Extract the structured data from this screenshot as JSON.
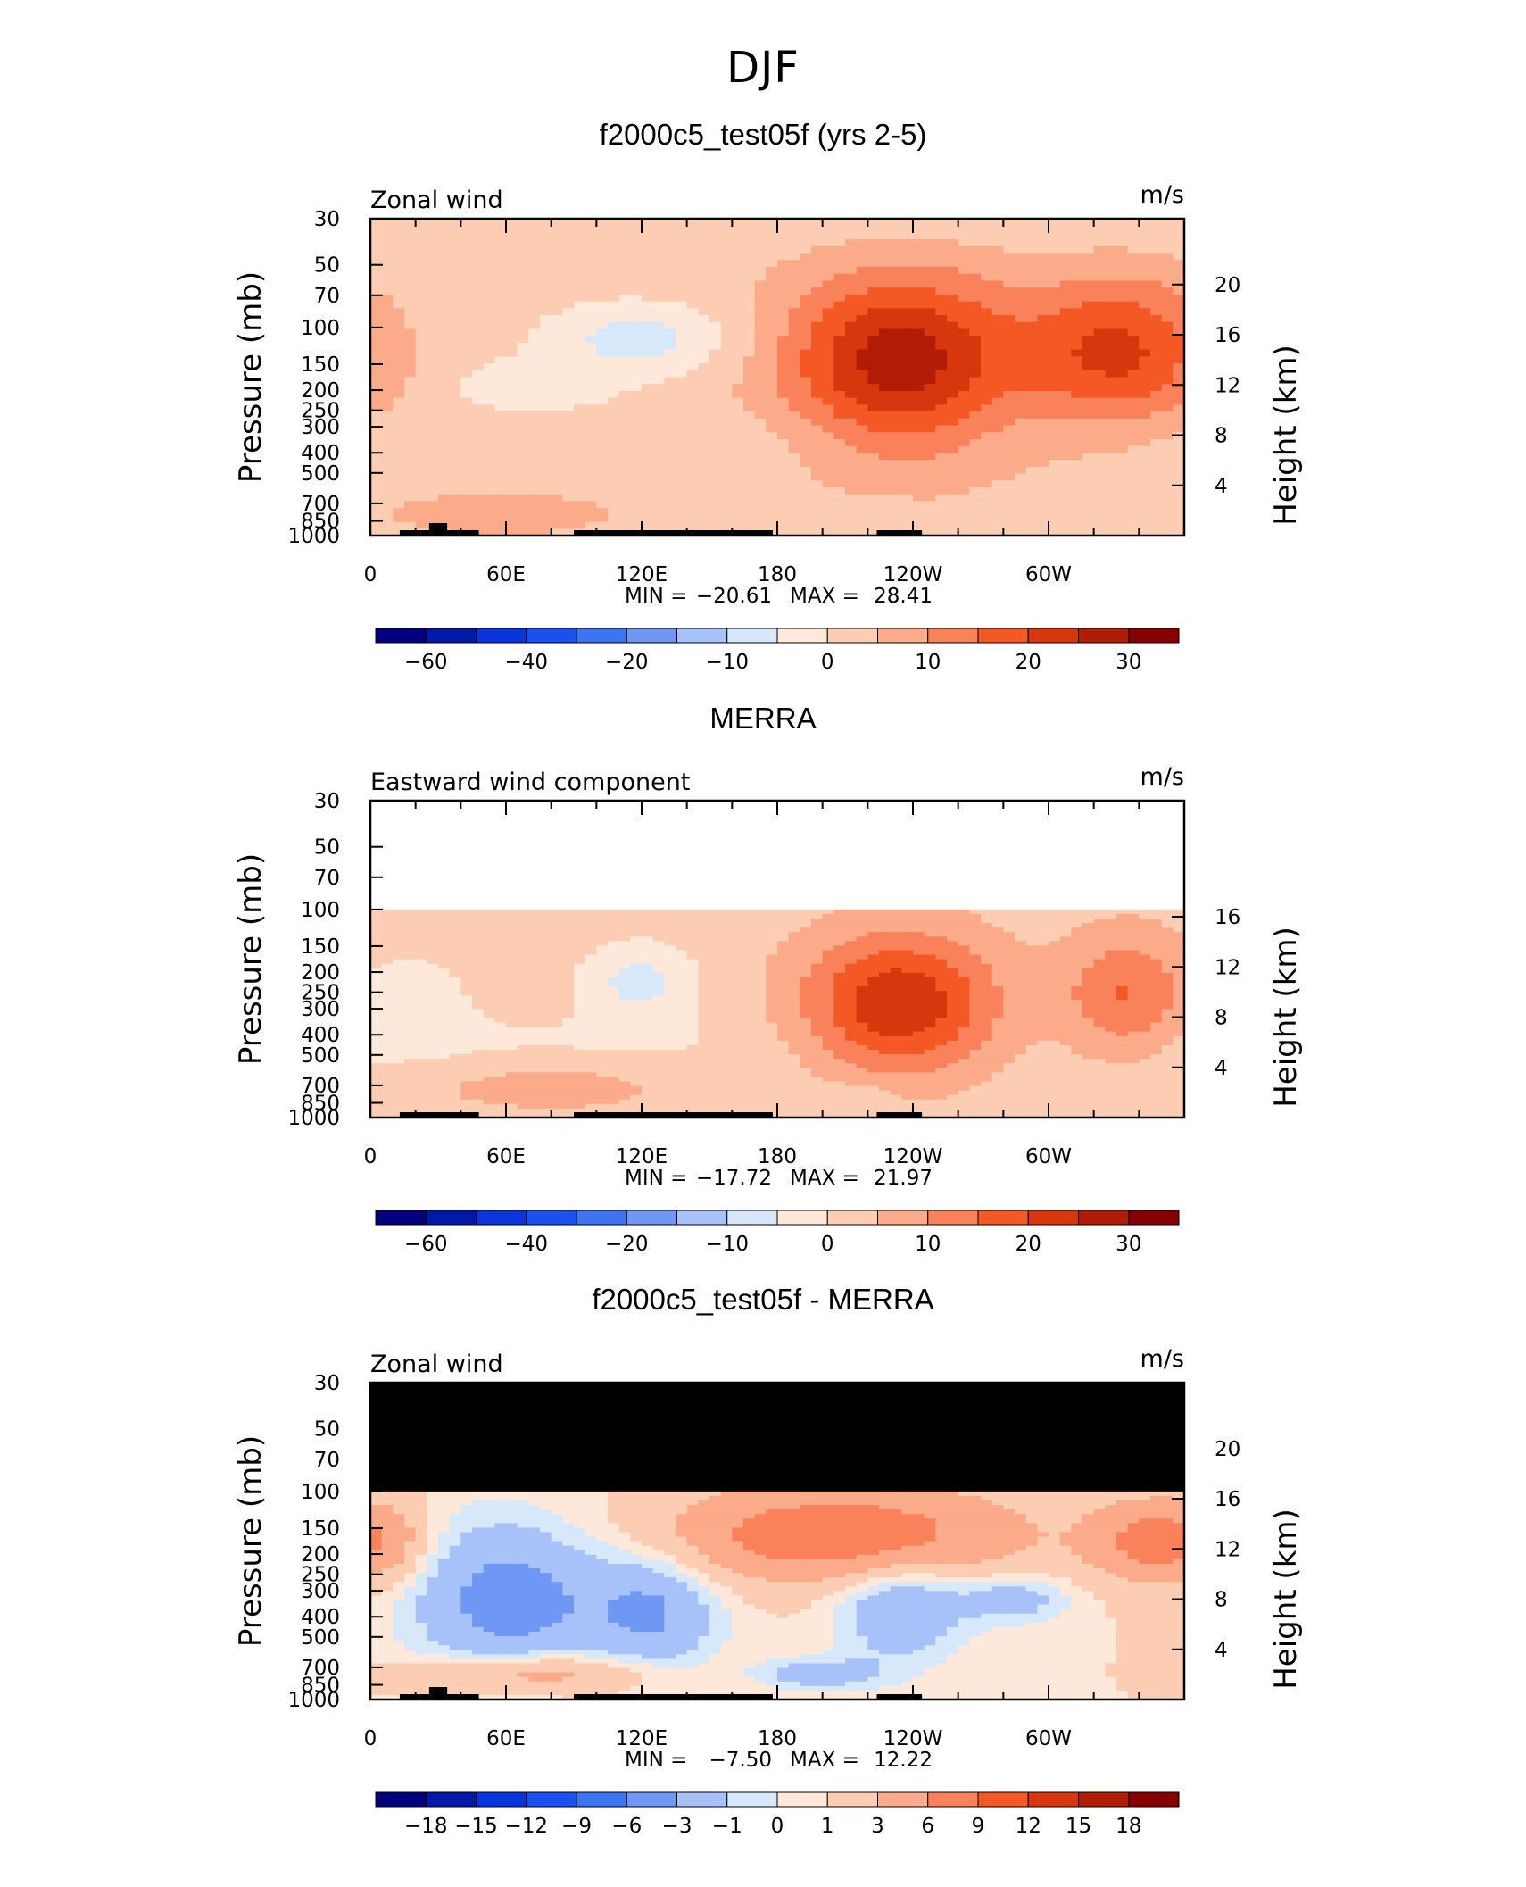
{
  "figure": {
    "title": "DJF"
  },
  "colors": {
    "ramp": [
      "#03007d",
      "#0019a8",
      "#0a34dc",
      "#1a52f2",
      "#3d74f2",
      "#6f98f5",
      "#a7c1f9",
      "#d7e8fb",
      "#fde8d9",
      "#fdcdb3",
      "#fbab89",
      "#f9825a",
      "#f45825",
      "#d8360c",
      "#b11c06",
      "#860000"
    ],
    "mask": "#000000",
    "topography": "#000000"
  },
  "chart_data": [
    {
      "type": "heatmap",
      "title": "f2000c5_test05f (yrs 2-5)",
      "left_label": "Zonal wind",
      "units": "m/s",
      "ylabel": "Pressure (mb)",
      "ylabel_right": "Height (km)",
      "x_ticks": [
        "0",
        "60E",
        "120E",
        "180",
        "120W",
        "60W"
      ],
      "y_ticks": [
        "30",
        "50",
        "70",
        "100",
        "150",
        "200",
        "250",
        "300",
        "400",
        "500",
        "700",
        "850",
        "1000"
      ],
      "height_ticks": [
        "20",
        "16",
        "12",
        "8",
        "4"
      ],
      "min_label": "MIN =",
      "min_value": "−20.61",
      "max_label": "MAX =",
      "max_value": "28.41",
      "colorbar_labels": [
        "−60",
        "−40",
        "−20",
        "−10",
        "0",
        "10",
        "20",
        "30"
      ],
      "pressure_range_mb": [
        1000,
        30
      ],
      "longitude_range": [
        0,
        360
      ],
      "min": -20.61,
      "max": 28.41
    },
    {
      "type": "heatmap",
      "title": "MERRA",
      "left_label": "Eastward wind component",
      "units": "m/s",
      "ylabel": "Pressure (mb)",
      "ylabel_right": "Height (km)",
      "x_ticks": [
        "0",
        "60E",
        "120E",
        "180",
        "120W",
        "60W"
      ],
      "y_ticks": [
        "30",
        "50",
        "70",
        "100",
        "150",
        "200",
        "250",
        "300",
        "400",
        "500",
        "700",
        "850",
        "1000"
      ],
      "height_ticks": [
        "16",
        "12",
        "8",
        "4"
      ],
      "min_label": "MIN =",
      "min_value": "−17.72",
      "max_label": "MAX =",
      "max_value": "21.97",
      "colorbar_labels": [
        "−60",
        "−40",
        "−20",
        "−10",
        "0",
        "10",
        "20",
        "30"
      ],
      "pressure_range_mb": [
        1000,
        30
      ],
      "longitude_range": [
        0,
        360
      ],
      "data_top_mb": 100,
      "min": -17.72,
      "max": 21.97
    },
    {
      "type": "heatmap",
      "title": "f2000c5_test05f - MERRA",
      "left_label": "Zonal wind",
      "units": "m/s",
      "ylabel": "Pressure (mb)",
      "ylabel_right": "Height (km)",
      "x_ticks": [
        "0",
        "60E",
        "120E",
        "180",
        "120W",
        "60W"
      ],
      "y_ticks": [
        "30",
        "50",
        "70",
        "100",
        "150",
        "200",
        "250",
        "300",
        "400",
        "500",
        "700",
        "850",
        "1000"
      ],
      "height_ticks": [
        "20",
        "16",
        "12",
        "8",
        "4"
      ],
      "min_label": "MIN =",
      "min_value": "−7.50",
      "max_label": "MAX =",
      "max_value": "12.22",
      "colorbar_labels": [
        "−18",
        "−15",
        "−12",
        "−9",
        "−6",
        "−3",
        "−1",
        "0",
        "1",
        "3",
        "6",
        "9",
        "12",
        "15",
        "18"
      ],
      "pressure_range_mb": [
        1000,
        30
      ],
      "longitude_range": [
        0,
        360
      ],
      "masked_above_mb": 100,
      "min": -7.5,
      "max": 12.22
    }
  ]
}
